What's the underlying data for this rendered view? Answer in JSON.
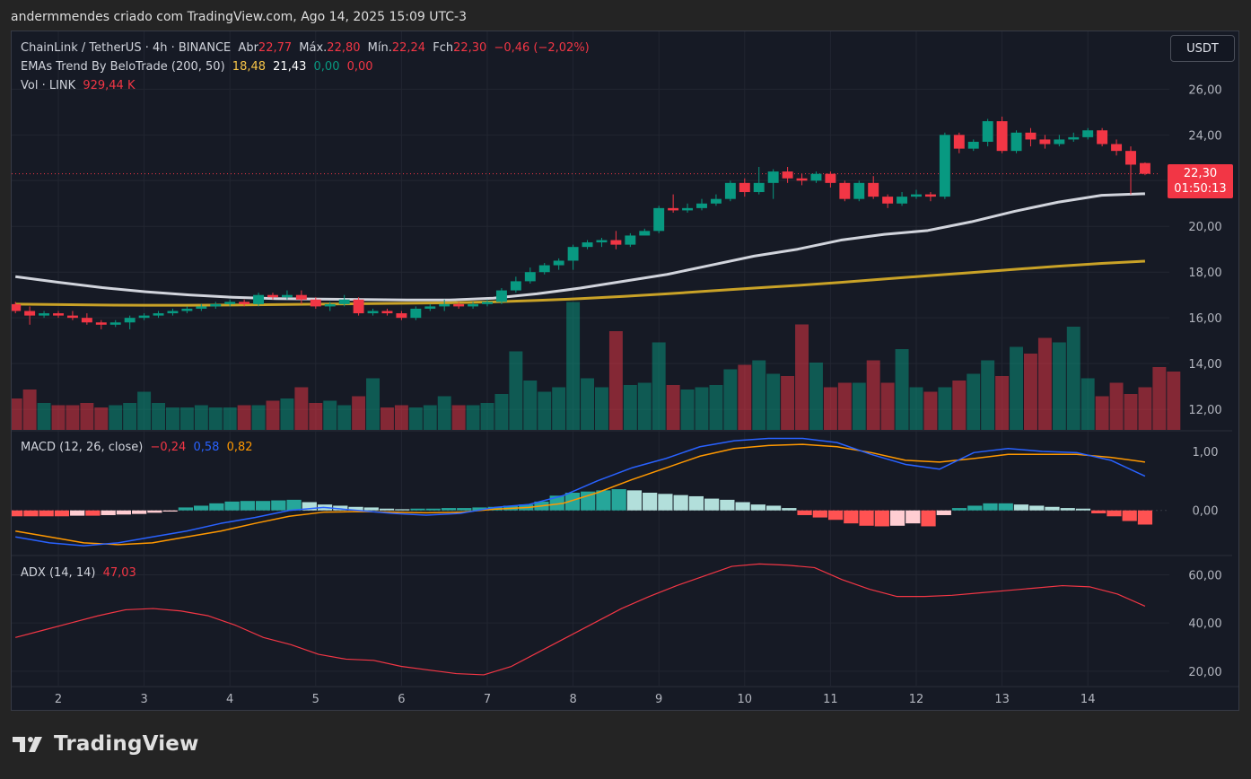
{
  "caption": "andermmendes criado com TradingView.com, Ago 14, 2025 15:09 UTC-3",
  "currency_button": "USDT",
  "brand": {
    "name": "TradingView",
    "icon": "tradingview-logo-icon"
  },
  "legend": {
    "symbol": "ChainLink / TetherUS · 4h · BINANCE",
    "open_label": "Abr",
    "open": "22,77",
    "high_label": "Máx.",
    "high": "22,80",
    "low_label": "Mín.",
    "low": "22,24",
    "close_label": "Fch",
    "close": "22,30",
    "change": "−0,46 (−2,02%)",
    "ema_name": "EMAs Trend By BeloTrade (200, 50)",
    "ema_v1": "18,48",
    "ema_v2": "21,43",
    "ema_v3": "0,00",
    "ema_v4": "0,00",
    "vol_name": "Vol · LINK",
    "vol_value": "929,44 K",
    "macd_name": "MACD (12, 26, close)",
    "macd_hist": "−0,24",
    "macd_line": "0,58",
    "macd_signal": "0,82",
    "adx_name": "ADX (14, 14)",
    "adx_value": "47,03"
  },
  "price_label": {
    "price": "22,30",
    "countdown": "01:50:13"
  },
  "colors": {
    "up": "#089981",
    "down": "#f23645",
    "ema50": "#d1d4dc",
    "ema200": "#c9a227",
    "macd": "#2962ff",
    "signal": "#ff9800",
    "adx": "#f23645",
    "hist_up_strong": "#26a69a",
    "hist_up_weak": "#b2dfdb",
    "hist_down_strong": "#ff5252",
    "hist_down_weak": "#ffcdd2"
  },
  "chart_data": {
    "type": "candlestick",
    "symbol": "LINKUSDT",
    "timeframe": "4h",
    "x_ticks": [
      "2",
      "3",
      "4",
      "5",
      "6",
      "7",
      "8",
      "9",
      "10",
      "11",
      "12",
      "13",
      "14"
    ],
    "price_axis": {
      "ticks": [
        12,
        14,
        16,
        18,
        20,
        22,
        24,
        26
      ],
      "labels": [
        "12,00",
        "14,00",
        "16,00",
        "18,00",
        "20,00",
        "22,00",
        "24,00",
        "26,00"
      ],
      "range": [
        11.1,
        26.8
      ]
    },
    "last_price": 22.3,
    "candles": [
      [
        16.6,
        16.3,
        16.7,
        16.2
      ],
      [
        16.3,
        16.1,
        16.5,
        15.7
      ],
      [
        16.1,
        16.2,
        16.3,
        16.0
      ],
      [
        16.2,
        16.1,
        16.3,
        16.0
      ],
      [
        16.1,
        16.0,
        16.3,
        15.9
      ],
      [
        16.0,
        15.8,
        16.2,
        15.7
      ],
      [
        15.8,
        15.7,
        15.9,
        15.5
      ],
      [
        15.7,
        15.8,
        15.9,
        15.6
      ],
      [
        15.8,
        16.0,
        16.1,
        15.5
      ],
      [
        16.0,
        16.1,
        16.2,
        15.9
      ],
      [
        16.1,
        16.2,
        16.3,
        16.0
      ],
      [
        16.2,
        16.3,
        16.4,
        16.1
      ],
      [
        16.3,
        16.4,
        16.5,
        16.2
      ],
      [
        16.4,
        16.5,
        16.6,
        16.3
      ],
      [
        16.5,
        16.6,
        16.7,
        16.4
      ],
      [
        16.6,
        16.7,
        16.8,
        16.5
      ],
      [
        16.7,
        16.6,
        16.8,
        16.5
      ],
      [
        16.6,
        17.0,
        17.1,
        16.5
      ],
      [
        17.0,
        16.9,
        17.1,
        16.8
      ],
      [
        16.9,
        17.0,
        17.2,
        16.8
      ],
      [
        17.0,
        16.8,
        17.2,
        16.6
      ],
      [
        16.8,
        16.5,
        16.9,
        16.4
      ],
      [
        16.5,
        16.6,
        16.7,
        16.3
      ],
      [
        16.6,
        16.8,
        17.0,
        16.5
      ],
      [
        16.8,
        16.2,
        16.9,
        16.1
      ],
      [
        16.2,
        16.3,
        16.4,
        16.1
      ],
      [
        16.3,
        16.2,
        16.4,
        16.1
      ],
      [
        16.2,
        16.0,
        16.3,
        15.9
      ],
      [
        16.0,
        16.4,
        16.5,
        15.9
      ],
      [
        16.4,
        16.5,
        16.6,
        16.3
      ],
      [
        16.5,
        16.6,
        16.8,
        16.3
      ],
      [
        16.6,
        16.5,
        16.7,
        16.4
      ],
      [
        16.5,
        16.6,
        16.7,
        16.4
      ],
      [
        16.6,
        16.7,
        16.8,
        16.5
      ],
      [
        16.7,
        17.2,
        17.3,
        16.6
      ],
      [
        17.2,
        17.6,
        17.8,
        17.1
      ],
      [
        17.6,
        18.0,
        18.2,
        17.5
      ],
      [
        18.0,
        18.3,
        18.4,
        17.9
      ],
      [
        18.3,
        18.5,
        18.6,
        18.1
      ],
      [
        18.5,
        19.1,
        19.2,
        18.1
      ],
      [
        19.1,
        19.3,
        19.4,
        19.0
      ],
      [
        19.3,
        19.4,
        19.5,
        19.1
      ],
      [
        19.4,
        19.2,
        19.8,
        19.0
      ],
      [
        19.2,
        19.6,
        19.7,
        19.1
      ],
      [
        19.6,
        19.8,
        19.9,
        19.7
      ],
      [
        19.8,
        20.8,
        20.9,
        19.7
      ],
      [
        20.8,
        20.7,
        21.4,
        20.6
      ],
      [
        20.7,
        20.8,
        21.0,
        20.6
      ],
      [
        20.8,
        21.0,
        21.2,
        20.7
      ],
      [
        21.0,
        21.2,
        21.4,
        20.9
      ],
      [
        21.2,
        21.9,
        22.0,
        21.1
      ],
      [
        21.9,
        21.5,
        22.1,
        21.3
      ],
      [
        21.5,
        21.9,
        22.6,
        21.4
      ],
      [
        21.9,
        22.4,
        22.5,
        21.2
      ],
      [
        22.4,
        22.1,
        22.6,
        21.9
      ],
      [
        22.1,
        22.0,
        22.3,
        21.8
      ],
      [
        22.0,
        22.3,
        22.4,
        21.9
      ],
      [
        22.3,
        21.9,
        22.4,
        21.7
      ],
      [
        21.9,
        21.2,
        22.0,
        21.1
      ],
      [
        21.2,
        21.9,
        22.0,
        21.1
      ],
      [
        21.9,
        21.3,
        22.2,
        21.2
      ],
      [
        21.3,
        21.0,
        21.4,
        20.8
      ],
      [
        21.0,
        21.3,
        21.5,
        20.9
      ],
      [
        21.3,
        21.4,
        21.6,
        21.2
      ],
      [
        21.4,
        21.3,
        21.5,
        21.1
      ],
      [
        21.3,
        24.0,
        24.1,
        21.2
      ],
      [
        24.0,
        23.4,
        24.1,
        23.2
      ],
      [
        23.4,
        23.7,
        23.8,
        23.3
      ],
      [
        23.7,
        24.6,
        24.7,
        23.5
      ],
      [
        24.6,
        23.3,
        24.8,
        23.2
      ],
      [
        23.3,
        24.1,
        24.2,
        23.2
      ],
      [
        24.1,
        23.8,
        24.3,
        23.5
      ],
      [
        23.8,
        23.6,
        24.0,
        23.4
      ],
      [
        23.6,
        23.8,
        24.0,
        23.5
      ],
      [
        23.8,
        23.9,
        24.1,
        23.7
      ],
      [
        23.9,
        24.2,
        24.3,
        23.8
      ],
      [
        24.2,
        23.6,
        24.3,
        23.5
      ],
      [
        23.6,
        23.3,
        23.8,
        23.1
      ],
      [
        23.3,
        22.7,
        23.5,
        21.4
      ],
      [
        22.77,
        22.3,
        22.8,
        22.24
      ]
    ],
    "ema200": [
      16.6,
      16.58,
      16.56,
      16.55,
      16.55,
      16.56,
      16.58,
      16.6,
      16.62,
      16.64,
      16.66,
      16.7,
      16.76,
      16.84,
      16.94,
      17.05,
      17.18,
      17.3,
      17.42,
      17.55,
      17.7,
      17.84,
      17.98,
      18.12,
      18.26,
      18.38,
      18.48
    ],
    "ema50": [
      17.8,
      17.55,
      17.32,
      17.14,
      17.0,
      16.9,
      16.84,
      16.82,
      16.8,
      16.78,
      16.78,
      16.86,
      17.05,
      17.3,
      17.6,
      17.9,
      18.3,
      18.7,
      19.0,
      19.4,
      19.65,
      19.82,
      20.2,
      20.66,
      21.06,
      21.36,
      21.43
    ],
    "volume": {
      "range": [
        0,
        16000
      ],
      "values": [
        1400,
        1800,
        1200,
        1100,
        1100,
        1200,
        1000,
        1100,
        1200,
        1700,
        1200,
        1000,
        1000,
        1100,
        1000,
        1000,
        1100,
        1100,
        1300,
        1400,
        1900,
        1200,
        1300,
        1100,
        1500,
        2300,
        1000,
        1100,
        1000,
        1100,
        1500,
        1100,
        1100,
        1200,
        1600,
        3500,
        2200,
        1700,
        1900,
        5700,
        2300,
        1900,
        4400,
        2000,
        2100,
        3900,
        2000,
        1800,
        1900,
        2000,
        2700,
        2900,
        3100,
        2500,
        2400,
        4700,
        3000,
        1900,
        2100,
        2100,
        3100,
        2100,
        3600,
        1900,
        1700,
        1900,
        2200,
        2500,
        3100,
        2400,
        3700,
        3400,
        4100,
        3900,
        4600,
        2300,
        1500,
        2100,
        1600,
        1900,
        2800,
        2600
      ]
    },
    "macd": {
      "range": [
        -0.75,
        1.35
      ],
      "ticks": [
        0,
        1
      ],
      "labels": [
        "0,00",
        "1,00"
      ],
      "line": [
        -0.45,
        -0.55,
        -0.6,
        -0.55,
        -0.45,
        -0.35,
        -0.22,
        -0.12,
        0.0,
        0.05,
        0.0,
        -0.05,
        -0.08,
        -0.05,
        0.05,
        0.1,
        0.25,
        0.5,
        0.72,
        0.88,
        1.08,
        1.18,
        1.22,
        1.22,
        1.15,
        0.95,
        0.78,
        0.7,
        0.98,
        1.05,
        1.0,
        0.98,
        0.85,
        0.58
      ],
      "signal": [
        -0.35,
        -0.45,
        -0.55,
        -0.58,
        -0.55,
        -0.45,
        -0.35,
        -0.22,
        -0.1,
        -0.03,
        -0.02,
        -0.03,
        -0.04,
        -0.03,
        0.02,
        0.05,
        0.12,
        0.3,
        0.52,
        0.72,
        0.92,
        1.05,
        1.1,
        1.12,
        1.08,
        0.98,
        0.85,
        0.82,
        0.88,
        0.95,
        0.95,
        0.95,
        0.9,
        0.82
      ],
      "histogram": [
        -0.1,
        -0.1,
        -0.1,
        -0.1,
        -0.09,
        -0.09,
        -0.08,
        -0.07,
        -0.06,
        -0.04,
        -0.02,
        0.05,
        0.08,
        0.12,
        0.15,
        0.16,
        0.16,
        0.17,
        0.18,
        0.14,
        0.1,
        0.08,
        0.06,
        0.05,
        0.03,
        0.02,
        0.03,
        0.03,
        0.04,
        0.04,
        0.05,
        0.06,
        0.08,
        0.1,
        0.15,
        0.25,
        0.3,
        0.32,
        0.34,
        0.36,
        0.34,
        0.3,
        0.28,
        0.26,
        0.24,
        0.2,
        0.18,
        0.14,
        0.1,
        0.08,
        0.04,
        -0.08,
        -0.12,
        -0.16,
        -0.22,
        -0.26,
        -0.27,
        -0.26,
        -0.22,
        -0.27,
        -0.08,
        0.04,
        0.08,
        0.12,
        0.12,
        0.1,
        0.08,
        0.06,
        0.04,
        0.03,
        -0.05,
        -0.1,
        -0.18,
        -0.24
      ]
    },
    "adx": {
      "range": [
        14,
        68
      ],
      "ticks": [
        20,
        40,
        60
      ],
      "labels": [
        "20,00",
        "40,00",
        "60,00"
      ],
      "values": [
        34,
        37,
        40,
        43,
        45.5,
        46,
        45,
        43,
        39,
        34,
        31,
        27,
        25,
        24.5,
        22,
        20.5,
        19,
        18.5,
        22,
        28,
        34,
        40,
        46,
        51,
        55.5,
        59.5,
        63.5,
        64.5,
        64,
        63,
        58,
        54,
        51,
        51,
        51.5,
        52.5,
        53.5,
        54.5,
        55.5,
        55,
        52,
        47
      ]
    }
  }
}
